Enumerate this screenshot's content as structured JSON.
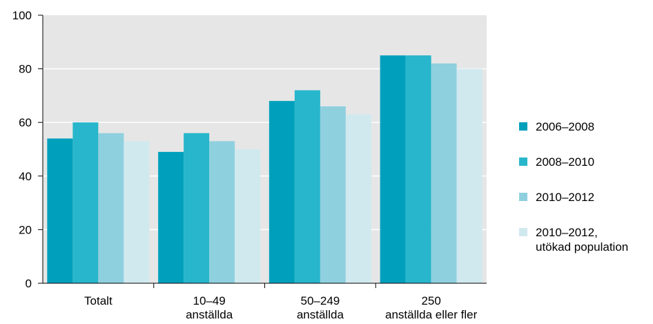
{
  "chart_data": {
    "type": "bar",
    "title": "",
    "xlabel": "",
    "ylabel": "",
    "ylim": [
      0,
      100
    ],
    "yticks": [
      0,
      20,
      40,
      60,
      80,
      100
    ],
    "grid": "horizontal",
    "legend_position": "right",
    "categories": [
      [
        "Totalt"
      ],
      [
        "10–49",
        "anställda"
      ],
      [
        "50–249",
        "anställda"
      ],
      [
        "250",
        "anställda eller fler"
      ]
    ],
    "series": [
      {
        "name": "2006–2008",
        "name_lines": [
          "2006–2008"
        ],
        "color": "#00a0bc",
        "values": [
          54,
          49,
          68,
          85
        ]
      },
      {
        "name": "2008–2010",
        "name_lines": [
          "2008–2010"
        ],
        "color": "#27b6cb",
        "values": [
          60,
          56,
          72,
          85
        ]
      },
      {
        "name": "2010–2012",
        "name_lines": [
          "2010–2012"
        ],
        "color": "#8fd0df",
        "values": [
          56,
          53,
          66,
          82
        ]
      },
      {
        "name": "2010–2012, utökad population",
        "name_lines": [
          "2010–2012,",
          "utökad population"
        ],
        "color": "#d0e9ef",
        "values": [
          53,
          50,
          63,
          80
        ]
      }
    ],
    "plot_background": "#e6e6e6",
    "grid_color": "#ffffff"
  }
}
